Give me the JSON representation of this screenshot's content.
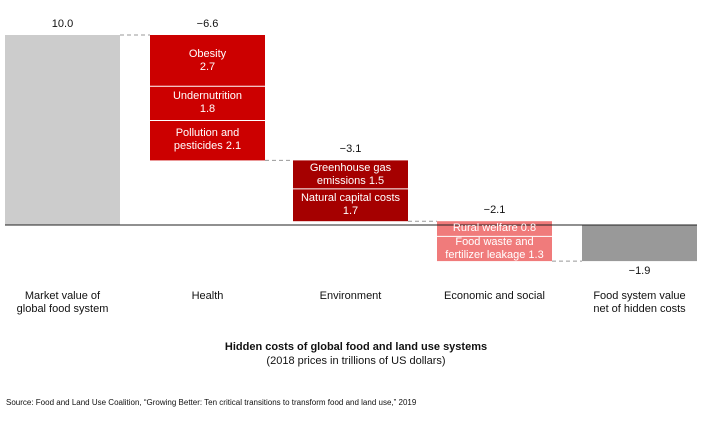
{
  "chart_data": {
    "type": "bar",
    "subtype": "waterfall",
    "title": "Hidden costs of global food and land use systems",
    "subtitle": "(2018 prices in trillions of US dollars)",
    "source": "Source: Food and Land Use Coalition, “Growing Better: Ten critical transitions to transform food and land use,” 2019",
    "xlabel": "",
    "ylabel": "",
    "ylim": [
      -1.9,
      10.0
    ],
    "categories": [
      {
        "label": "Market value of\nglobal food system",
        "total_label": "10.0",
        "kind": "total",
        "value": 10.0
      },
      {
        "label": "Health",
        "total_label": "−6.6",
        "kind": "decrease",
        "segments": [
          {
            "text": "Obesity\n2.7",
            "value": 2.7
          },
          {
            "text": "Undernutrition\n1.8",
            "value": 1.8
          },
          {
            "text": "Pollution and\npesticides 2.1",
            "value": 2.1
          }
        ]
      },
      {
        "label": "Environment",
        "total_label": "−3.1",
        "kind": "decrease",
        "segments": [
          {
            "text": "Greenhouse gas\nemissions 1.5",
            "value": 1.5
          },
          {
            "text": "Natural capital costs\n1.7",
            "value": 1.7
          }
        ]
      },
      {
        "label": "Economic and social",
        "total_label": "−2.1",
        "kind": "decrease",
        "segments": [
          {
            "text": "Rural welfare 0.8",
            "value": 0.8
          },
          {
            "text": "Food waste and\nfertilizer leakage 1.3",
            "value": 1.3
          }
        ]
      },
      {
        "label": "Food system value\nnet of hidden costs",
        "total_label": "−1.9",
        "kind": "net",
        "value": -1.9
      }
    ],
    "colors": {
      "total": "#cccccc",
      "health": "#cc0000",
      "environment": "#a50000",
      "economic": "#f07b7b",
      "net": "#999999",
      "segment_divider": "#ffffff",
      "connector": "#999999",
      "baseline": "#222222"
    }
  }
}
